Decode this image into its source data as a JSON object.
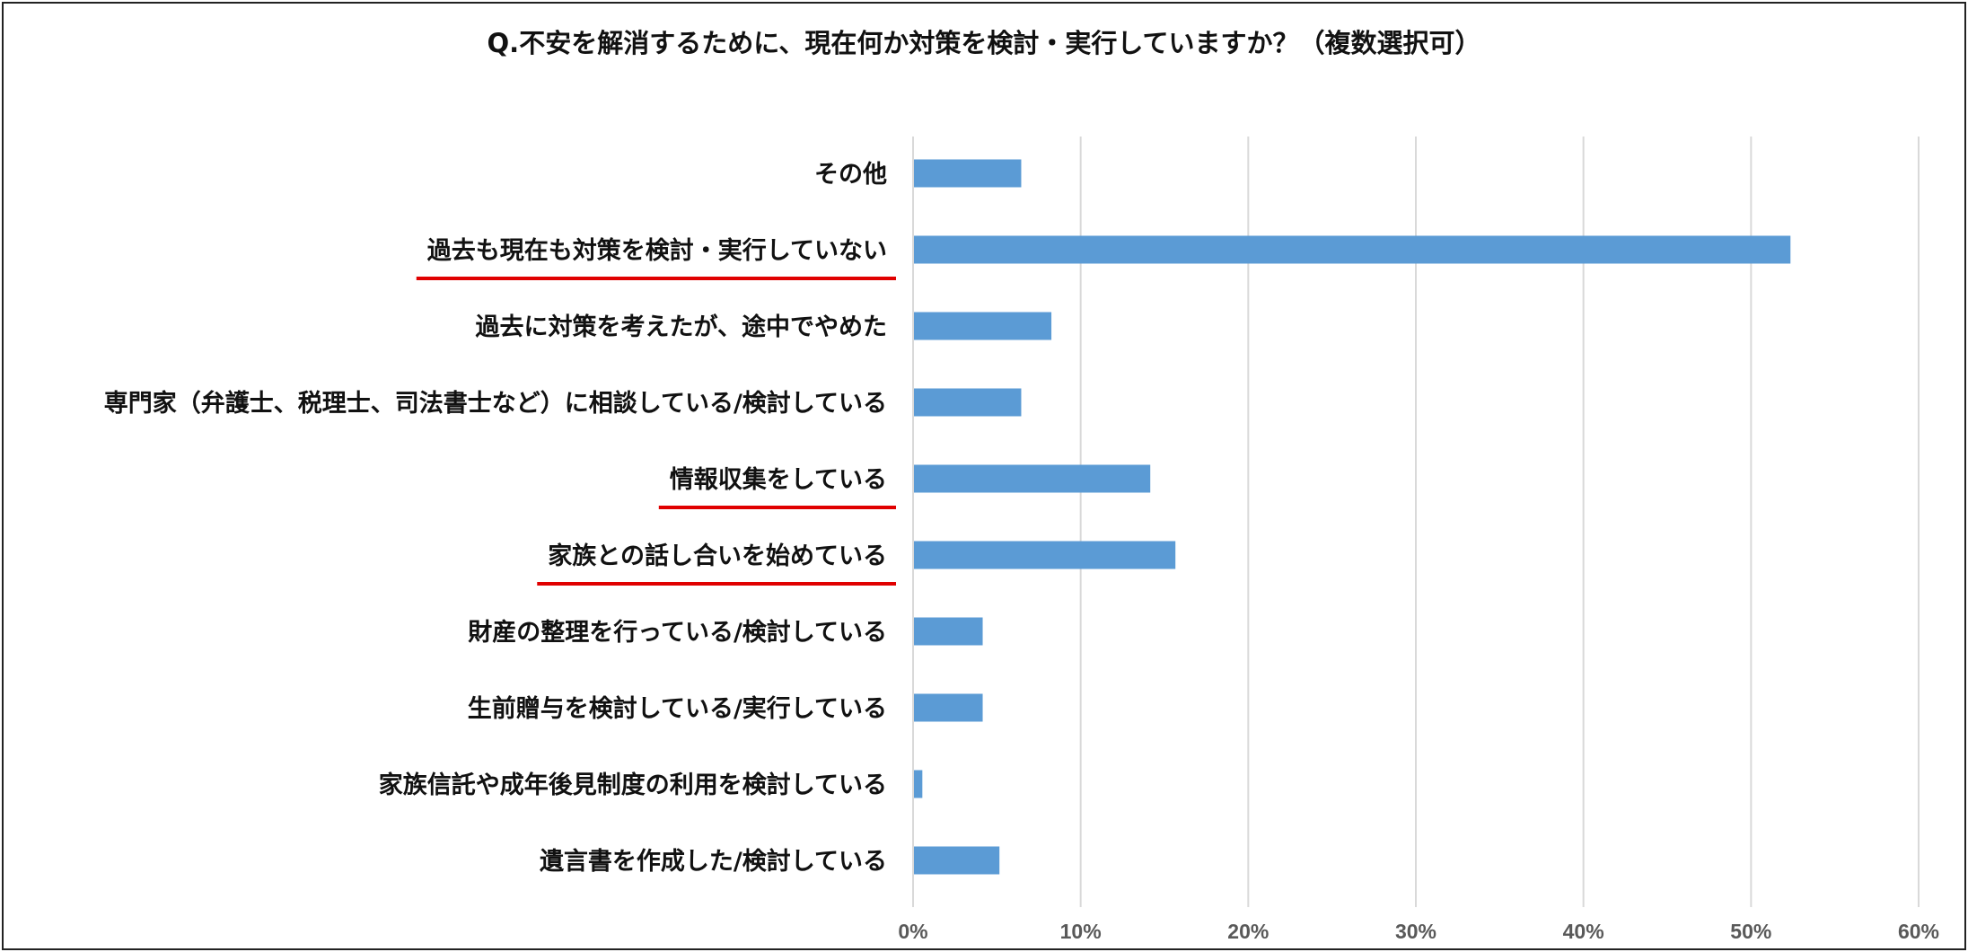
{
  "chart_data": {
    "type": "bar",
    "orientation": "horizontal",
    "title": "Q.不安を解消するために、現在何か対策を検討・実行していますか？（複数選択可）",
    "categories": [
      "その他",
      "過去も現在も対策を検討・実行していない",
      "過去に対策を考えたが、途中でやめた",
      "専門家（弁護士、税理士、司法書士など）に相談している/検討している",
      "情報収集をしている",
      "家族との話し合いを始めている",
      "財産の整理を行っている/検討している",
      "生前贈与を検討している/実行している",
      "家族信託や成年後見制度の利用を検討している",
      "遺言書を作成した/検討している"
    ],
    "values": [
      6.4,
      52.3,
      8.2,
      6.4,
      14.1,
      15.6,
      4.1,
      4.1,
      0.5,
      5.1
    ],
    "underlined_categories": [
      "過去も現在も対策を検討・実行していない",
      "情報収集をしている",
      "家族との話し合いを始めている"
    ],
    "xlim": [
      0,
      60
    ],
    "x_ticks": [
      "0%",
      "10%",
      "20%",
      "30%",
      "40%",
      "50%",
      "60%"
    ],
    "grid": true,
    "bar_color": "#5b9bd5",
    "underline_color": "#e00000"
  }
}
